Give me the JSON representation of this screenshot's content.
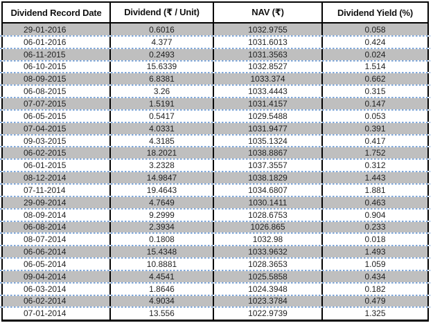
{
  "chart_data": {
    "type": "table",
    "title": "Dividend history table",
    "columns": [
      "Dividend Record Date",
      "Dividend (₹ / Unit)",
      "NAV (₹)",
      "Dividend Yield (%)"
    ],
    "rows": [
      [
        "29-01-2016",
        "0.6016",
        "1032.9755",
        "0.058"
      ],
      [
        "06-01-2016",
        "4.377",
        "1031.6013",
        "0.424"
      ],
      [
        "06-11-2015",
        "0.2493",
        "1031.3563",
        "0.024"
      ],
      [
        "06-10-2015",
        "15.6339",
        "1032.8527",
        "1.514"
      ],
      [
        "08-09-2015",
        "6.8381",
        "1033.374",
        "0.662"
      ],
      [
        "06-08-2015",
        "3.26",
        "1033.4443",
        "0.315"
      ],
      [
        "07-07-2015",
        "1.5191",
        "1031.4157",
        "0.147"
      ],
      [
        "06-05-2015",
        "0.5417",
        "1029.5488",
        "0.053"
      ],
      [
        "07-04-2015",
        "4.0331",
        "1031.9477",
        "0.391"
      ],
      [
        "09-03-2015",
        "4.3185",
        "1035.1324",
        "0.417"
      ],
      [
        "06-02-2015",
        "18.2021",
        "1038.8867",
        "1.752"
      ],
      [
        "06-01-2015",
        "3.2328",
        "1037.3557",
        "0.312"
      ],
      [
        "08-12-2014",
        "14.9847",
        "1038.1829",
        "1.443"
      ],
      [
        "07-11-2014",
        "19.4643",
        "1034.6807",
        "1.881"
      ],
      [
        "29-09-2014",
        "4.7649",
        "1030.1411",
        "0.463"
      ],
      [
        "08-09-2014",
        "9.2999",
        "1028.6753",
        "0.904"
      ],
      [
        "06-08-2014",
        "2.3934",
        "1026.865",
        "0.233"
      ],
      [
        "08-07-2014",
        "0.1808",
        "1032.98",
        "0.018"
      ],
      [
        "06-06-2014",
        "15.4348",
        "1033.9632",
        "1.493"
      ],
      [
        "06-05-2014",
        "10.8881",
        "1028.3653",
        "1.059"
      ],
      [
        "09-04-2014",
        "4.4541",
        "1025.5858",
        "0.434"
      ],
      [
        "06-03-2014",
        "1.8646",
        "1024.3948",
        "0.182"
      ],
      [
        "06-02-2014",
        "4.9034",
        "1023.3784",
        "0.479"
      ],
      [
        "07-01-2014",
        "13.556",
        "1022.9739",
        "1.325"
      ]
    ],
    "layout_hints": {
      "shading": "alternating rows starting shaded",
      "grid": "solid black column lines, dashed blue row separators"
    }
  },
  "colors": {
    "shaded_row": "#BFBFBF",
    "plain_row": "#FFFFFF",
    "grid_border": "#000000",
    "dashed_separator": "#7EA6D8",
    "text": "#1F1F1F"
  }
}
